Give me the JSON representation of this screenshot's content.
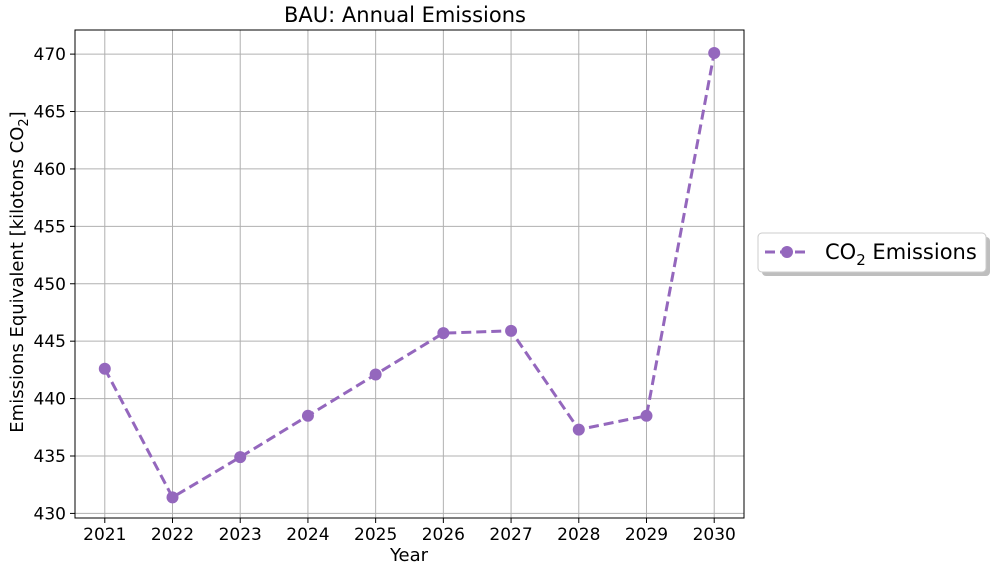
{
  "chart_data": {
    "type": "line",
    "title": "BAU: Annual Emissions",
    "xlabel": "Year",
    "ylabel_main": "Emissions Equivalent [kilotons CO",
    "ylabel_sub": "2",
    "ylabel_end": "]",
    "x": [
      2021,
      2022,
      2023,
      2024,
      2025,
      2026,
      2027,
      2028,
      2029,
      2030
    ],
    "xticks": [
      "2021",
      "2022",
      "2023",
      "2024",
      "2025",
      "2026",
      "2027",
      "2028",
      "2029",
      "2030"
    ],
    "yticks": [
      "430",
      "435",
      "440",
      "445",
      "450",
      "455",
      "460",
      "465",
      "470"
    ],
    "ylim": [
      429.6,
      472.1
    ],
    "xlim": [
      2020.56,
      2030.44
    ],
    "grid": true,
    "legend_position": "outside right",
    "series": [
      {
        "name_main": "CO",
        "name_sub": "2",
        "name_end": " Emissions",
        "color": "#9467bd",
        "line_style": "dashed",
        "marker": "circle",
        "values": [
          442.6,
          431.4,
          434.9,
          438.5,
          442.1,
          445.7,
          445.9,
          437.3,
          438.5,
          470.1
        ]
      }
    ]
  }
}
